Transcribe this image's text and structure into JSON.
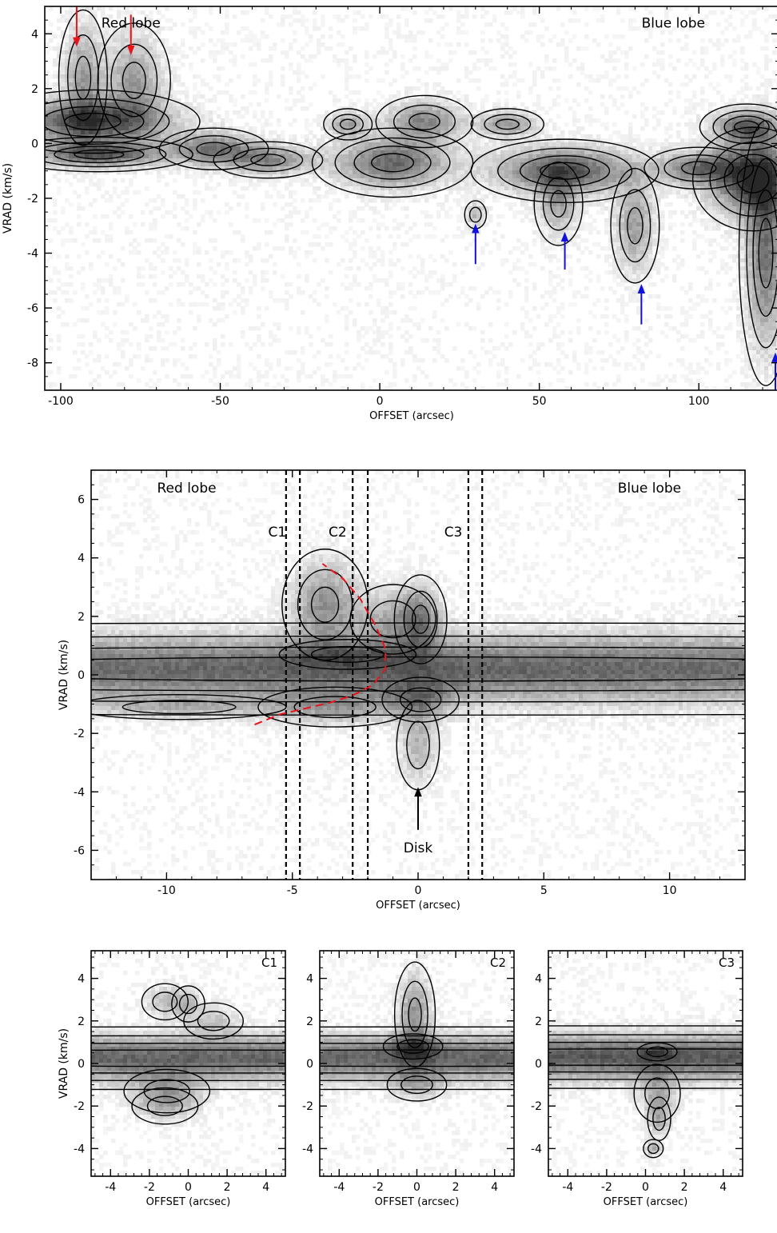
{
  "chart_data": [
    {
      "type": "heatmap",
      "panel": "top",
      "xlabel": "OFFSET (arcsec)",
      "ylabel": "VRAD (km/s)",
      "xlim": [
        -105,
        125
      ],
      "ylim": [
        -9,
        5
      ],
      "xticks": [
        -100,
        -50,
        0,
        50,
        100
      ],
      "yticks": [
        -8,
        -6,
        -4,
        -2,
        0,
        2,
        4
      ],
      "colormap": "greyscale with black contours",
      "annotations": [
        {
          "text": "Red lobe",
          "x": -78,
          "y": 4.4
        },
        {
          "text": "Blue lobe",
          "x": 92,
          "y": 4.4
        }
      ],
      "red_arrows": [
        {
          "x": -95,
          "y_tail": 5.0,
          "y_head": 3.7
        },
        {
          "x": -78,
          "y_tail": 4.7,
          "y_head": 3.4
        }
      ],
      "blue_arrows": [
        {
          "x": 30,
          "y_tail": -4.4,
          "y_head": -3.1
        },
        {
          "x": 58,
          "y_tail": -4.6,
          "y_head": -3.4
        },
        {
          "x": 82,
          "y_tail": -6.6,
          "y_head": -5.3
        },
        {
          "x": 124,
          "y_tail": -9.0,
          "y_head": -7.8
        }
      ],
      "emission_features": [
        {
          "x": -90,
          "y": 0.8,
          "sx": 16,
          "sy": 0.55,
          "level": 0.85
        },
        {
          "x": -88,
          "y": -0.4,
          "sx": 14,
          "sy": 0.3,
          "level": 0.75
        },
        {
          "x": -93,
          "y": 2.4,
          "sx": 4,
          "sy": 1.3,
          "level": 0.45
        },
        {
          "x": -77,
          "y": 2.3,
          "sx": 6,
          "sy": 1.1,
          "level": 0.45
        },
        {
          "x": -52,
          "y": -0.2,
          "sx": 9,
          "sy": 0.4,
          "level": 0.6
        },
        {
          "x": -35,
          "y": -0.6,
          "sx": 9,
          "sy": 0.35,
          "level": 0.55
        },
        {
          "x": -10,
          "y": 0.7,
          "sx": 4,
          "sy": 0.3,
          "level": 0.45
        },
        {
          "x": 4,
          "y": -0.7,
          "sx": 12,
          "sy": 0.6,
          "level": 0.7
        },
        {
          "x": 14,
          "y": 0.8,
          "sx": 8,
          "sy": 0.5,
          "level": 0.55
        },
        {
          "x": 40,
          "y": 0.7,
          "sx": 6,
          "sy": 0.3,
          "level": 0.5
        },
        {
          "x": 58,
          "y": -1.0,
          "sx": 14,
          "sy": 0.55,
          "level": 0.8
        },
        {
          "x": 56,
          "y": -2.2,
          "sx": 4,
          "sy": 0.8,
          "level": 0.4
        },
        {
          "x": 80,
          "y": -3.0,
          "sx": 4,
          "sy": 1.1,
          "level": 0.45
        },
        {
          "x": 30,
          "y": -2.6,
          "sx": 2,
          "sy": 0.3,
          "level": 0.35
        },
        {
          "x": 117,
          "y": -1.3,
          "sx": 9,
          "sy": 0.9,
          "level": 0.9
        },
        {
          "x": 121,
          "y": -4.0,
          "sx": 4,
          "sy": 2.3,
          "level": 0.65
        },
        {
          "x": 115,
          "y": 0.6,
          "sx": 7,
          "sy": 0.4,
          "level": 0.7
        },
        {
          "x": 100,
          "y": -0.9,
          "sx": 9,
          "sy": 0.4,
          "level": 0.6
        }
      ]
    },
    {
      "type": "heatmap",
      "panel": "middle",
      "xlabel": "OFFSET (arcsec)",
      "ylabel": "VRAD (km/s)",
      "xlim": [
        -13,
        13
      ],
      "ylim": [
        -7,
        7
      ],
      "xticks": [
        -10,
        -5,
        0,
        5,
        10
      ],
      "yticks": [
        -6,
        -4,
        -2,
        0,
        2,
        4,
        6
      ],
      "colormap": "greyscale with black contours",
      "annotations": [
        {
          "text": "Red lobe",
          "x": -9.2,
          "y": 6.4
        },
        {
          "text": "Blue lobe",
          "x": 9.2,
          "y": 6.4
        },
        {
          "text": "C1",
          "x": -5.6,
          "y": 4.9
        },
        {
          "text": "C2",
          "x": -3.2,
          "y": 4.9
        },
        {
          "text": "C3",
          "x": 1.4,
          "y": 4.9
        },
        {
          "text": "Disk",
          "x": 0.0,
          "y": -5.9
        }
      ],
      "vertical_dashed_lines": [
        -5.25,
        -4.7,
        -2.6,
        -2.0,
        2.0,
        2.55
      ],
      "disk_arrow": {
        "x": 0.0,
        "y_tail": -5.3,
        "y_head": -4.0
      },
      "red_dashed_arc": [
        {
          "x": -6.5,
          "y": -1.7
        },
        {
          "x": -5.5,
          "y": -1.35
        },
        {
          "x": -4.5,
          "y": -1.15
        },
        {
          "x": -3.5,
          "y": -0.95
        },
        {
          "x": -2.6,
          "y": -0.7
        },
        {
          "x": -1.8,
          "y": -0.35
        },
        {
          "x": -1.3,
          "y": 0.2
        },
        {
          "x": -1.3,
          "y": 0.9
        },
        {
          "x": -1.7,
          "y": 1.7
        },
        {
          "x": -2.3,
          "y": 2.6
        },
        {
          "x": -3.0,
          "y": 3.3
        },
        {
          "x": -3.8,
          "y": 3.8
        }
      ],
      "emission_features": [
        {
          "x": 0,
          "y": 0.2,
          "sx": 40,
          "sy": 0.75,
          "level": 0.72
        },
        {
          "x": -2.8,
          "y": 0.7,
          "sx": 1.6,
          "sy": 0.3,
          "level": 0.2
        },
        {
          "x": 0.1,
          "y": -0.85,
          "sx": 0.9,
          "sy": 0.45,
          "level": 0.35
        },
        {
          "x": 0.0,
          "y": -2.4,
          "sx": 0.5,
          "sy": 0.9,
          "level": 0.35
        },
        {
          "x": 0.1,
          "y": 1.9,
          "sx": 0.55,
          "sy": 0.8,
          "level": 0.45
        },
        {
          "x": -3.7,
          "y": 2.4,
          "sx": 0.9,
          "sy": 1.0,
          "level": 0.5
        },
        {
          "x": -1.0,
          "y": 1.9,
          "sx": 1.0,
          "sy": 0.7,
          "level": 0.35
        },
        {
          "x": -3.3,
          "y": -1.1,
          "sx": 1.8,
          "sy": 0.4,
          "level": 0.35
        },
        {
          "x": -9.5,
          "y": -1.1,
          "sx": 2.5,
          "sy": 0.25,
          "level": 0.25
        }
      ]
    },
    {
      "type": "heatmap",
      "panel": "cut",
      "label": "C1",
      "xlabel": "OFFSET (arcsec)",
      "ylabel": "VRAD (km/s)",
      "xlim": [
        -5,
        5
      ],
      "ylim": [
        -5.3,
        5.3
      ],
      "xticks": [
        -4,
        -2,
        0,
        2,
        4
      ],
      "yticks": [
        -4,
        -2,
        0,
        2,
        4
      ],
      "emission_features": [
        {
          "x": 0,
          "y": 0.25,
          "sx": 40,
          "sy": 0.7,
          "level": 0.72
        },
        {
          "x": -1.1,
          "y": -1.3,
          "sx": 1.3,
          "sy": 0.6,
          "level": 0.35
        },
        {
          "x": -1.2,
          "y": -2.0,
          "sx": 1.0,
          "sy": 0.5,
          "level": 0.25
        },
        {
          "x": -1.2,
          "y": 2.9,
          "sx": 0.7,
          "sy": 0.5,
          "level": 0.3
        },
        {
          "x": 0.0,
          "y": 2.8,
          "sx": 0.5,
          "sy": 0.5,
          "level": 0.25
        },
        {
          "x": 1.3,
          "y": 2.0,
          "sx": 0.9,
          "sy": 0.5,
          "level": 0.25
        }
      ]
    },
    {
      "type": "heatmap",
      "panel": "cut",
      "label": "C2",
      "xlabel": "OFFSET (arcsec)",
      "ylabel": "",
      "xlim": [
        -5,
        5
      ],
      "ylim": [
        -5.3,
        5.3
      ],
      "xticks": [
        -4,
        -2,
        0,
        2,
        4
      ],
      "yticks": [
        -4,
        -2,
        0,
        2,
        4
      ],
      "emission_features": [
        {
          "x": 0,
          "y": 0.25,
          "sx": 40,
          "sy": 0.7,
          "level": 0.72
        },
        {
          "x": -0.1,
          "y": 2.3,
          "sx": 0.55,
          "sy": 1.3,
          "level": 0.5
        },
        {
          "x": -0.2,
          "y": 0.8,
          "sx": 0.9,
          "sy": 0.35,
          "level": 0.3
        },
        {
          "x": 0.0,
          "y": -1.0,
          "sx": 0.9,
          "sy": 0.45,
          "level": 0.3
        }
      ]
    },
    {
      "type": "heatmap",
      "panel": "cut",
      "label": "C3",
      "xlabel": "OFFSET (arcsec)",
      "ylabel": "",
      "xlim": [
        -5,
        5
      ],
      "ylim": [
        -5.3,
        5.3
      ],
      "xticks": [
        -4,
        -2,
        0,
        2,
        4
      ],
      "yticks": [
        -4,
        -2,
        0,
        2,
        4
      ],
      "emission_features": [
        {
          "x": 0,
          "y": 0.3,
          "sx": 40,
          "sy": 0.7,
          "level": 0.78
        },
        {
          "x": 0.6,
          "y": 0.55,
          "sx": 0.6,
          "sy": 0.25,
          "level": 0.2
        },
        {
          "x": 0.6,
          "y": -1.4,
          "sx": 0.7,
          "sy": 0.8,
          "level": 0.35
        },
        {
          "x": 0.7,
          "y": -2.6,
          "sx": 0.35,
          "sy": 0.6,
          "level": 0.3
        },
        {
          "x": 0.4,
          "y": -4.0,
          "sx": 0.3,
          "sy": 0.25,
          "level": 0.35
        }
      ]
    }
  ],
  "colors": {
    "red_arrow": "#e8141b",
    "blue_arrow": "#1111dd",
    "red_dashed_arc": "#e8141b",
    "contour": "#000000"
  }
}
